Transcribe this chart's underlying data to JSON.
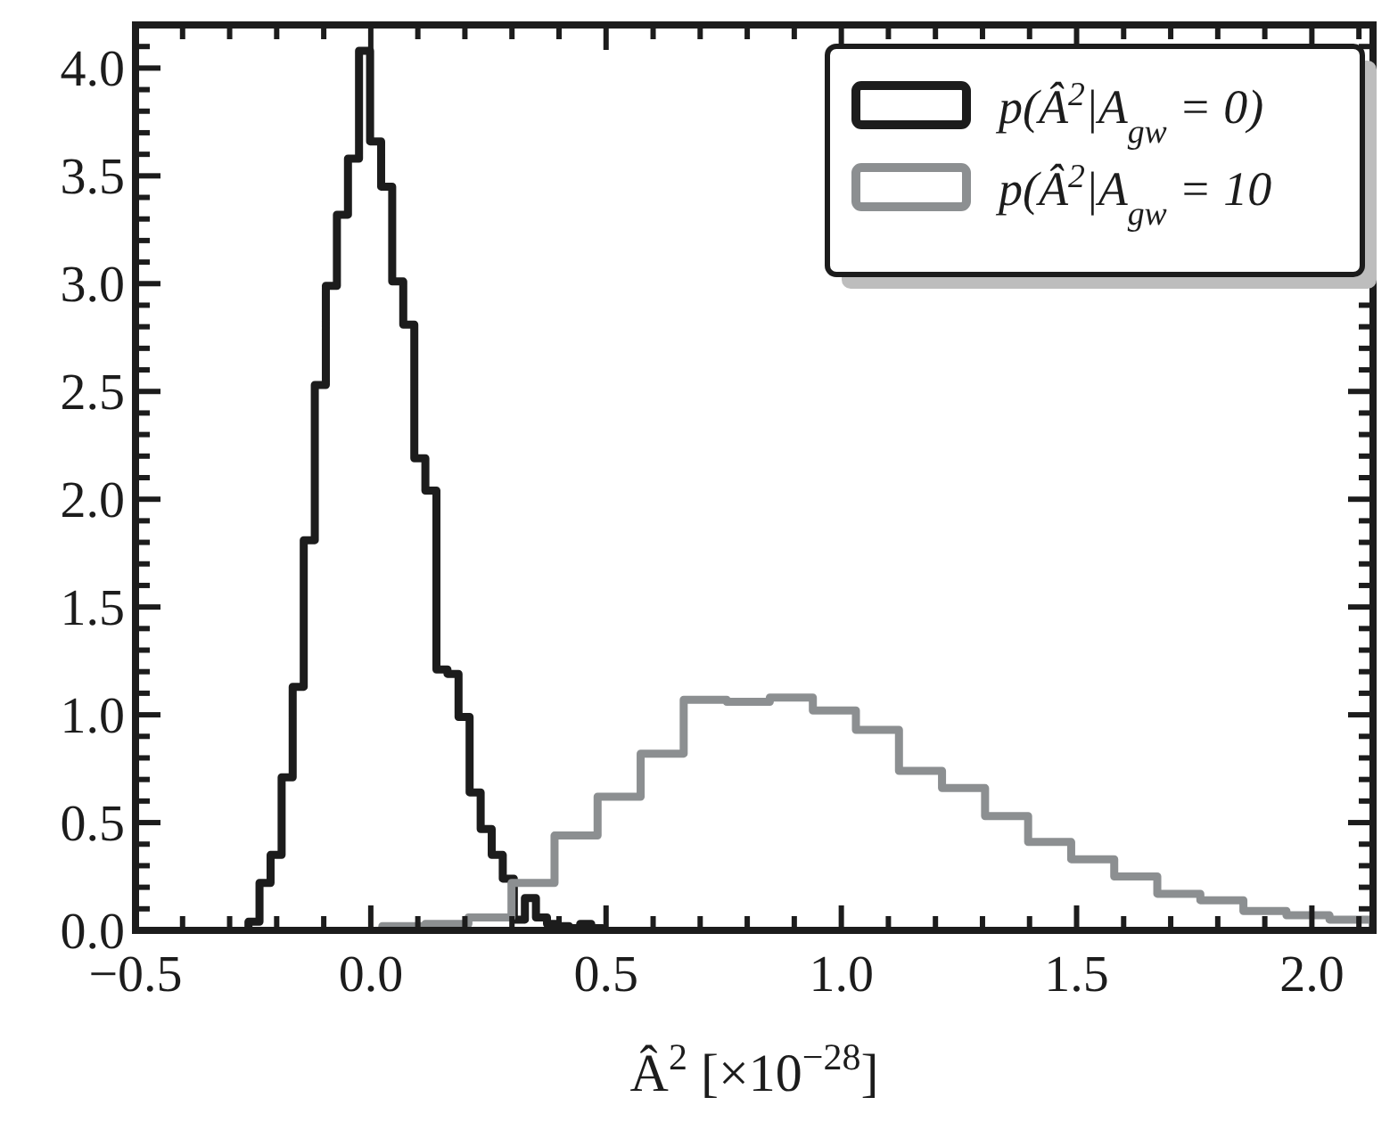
{
  "chart_data": {
    "type": "step",
    "xlabel": "Â$^{2}$ [×10$^{−28}$]",
    "series": [
      {
        "name": "p(Â$^{2}$|A$_{gw}$ = 0)",
        "color": "#1c1c1c",
        "x": [
          -0.26,
          -0.26,
          -0.2365,
          -0.213,
          -0.1895,
          -0.166,
          -0.1425,
          -0.119,
          -0.0955,
          -0.072,
          -0.0485,
          -0.025,
          -0.0015,
          0.022,
          0.0455,
          0.069,
          0.0925,
          0.116,
          0.1395,
          0.163,
          0.1865,
          0.21,
          0.2335,
          0.257,
          0.2805,
          0.304,
          0.3275,
          0.351,
          0.3745,
          0.398,
          0.4215,
          0.445,
          0.4685,
          0.492,
          0.492
        ],
        "values": [
          0,
          0.04,
          0.22,
          0.35,
          0.71,
          1.13,
          1.81,
          2.53,
          2.99,
          3.32,
          3.58,
          4.08,
          3.66,
          3.45,
          3.01,
          2.81,
          2.19,
          2.04,
          1.21,
          1.19,
          0.99,
          0.64,
          0.47,
          0.35,
          0.24,
          0.05,
          0.15,
          0.06,
          0.03,
          0.02,
          0.01,
          0.03,
          0.01,
          0.01,
          0
        ]
      },
      {
        "name": "p(Â$^{2}$|A$_{gw}$ = 10",
        "color": "#8c8f91",
        "x": [
          0.0245,
          0.0245,
          0.116,
          0.2075,
          0.299,
          0.3905,
          0.482,
          0.5735,
          0.665,
          0.7565,
          0.848,
          0.9395,
          1.031,
          1.1225,
          1.214,
          1.3055,
          1.397,
          1.4885,
          1.58,
          1.6715,
          1.763,
          1.8545,
          1.946,
          2.0375,
          2.129,
          2.129
        ],
        "values": [
          0,
          0.02,
          0.03,
          0.06,
          0.22,
          0.44,
          0.62,
          0.82,
          1.07,
          1.06,
          1.08,
          1.02,
          0.93,
          0.74,
          0.66,
          0.53,
          0.41,
          0.33,
          0.25,
          0.17,
          0.14,
          0.09,
          0.07,
          0.05,
          0.05,
          0
        ]
      }
    ],
    "xlim": [
      -0.5,
      2.13
    ],
    "xticks": [
      {
        "value": -0.5,
        "label": "−0.5"
      },
      {
        "value": -0.4,
        "label": null
      },
      {
        "value": -0.3,
        "label": null
      },
      {
        "value": -0.2,
        "label": null
      },
      {
        "value": -0.1,
        "label": null
      },
      {
        "value": 0,
        "label": "0.0"
      },
      {
        "value": 0.1,
        "label": null
      },
      {
        "value": 0.2,
        "label": null
      },
      {
        "value": 0.3,
        "label": null
      },
      {
        "value": 0.4,
        "label": null
      },
      0.5,
      {
        "value": 0.6,
        "label": null
      },
      {
        "value": 0.7,
        "label": null
      },
      {
        "value": 0.8,
        "label": null
      },
      {
        "value": 0.9,
        "label": null
      },
      {
        "value": 1,
        "label": "1.0"
      },
      {
        "value": 1.1,
        "label": null
      },
      {
        "value": 1.2,
        "label": null
      },
      {
        "value": 1.3,
        "label": null
      },
      {
        "value": 1.4,
        "label": null
      },
      1.5,
      {
        "value": 1.6,
        "label": null
      },
      {
        "value": 1.7,
        "label": null
      },
      {
        "value": 1.8,
        "label": null
      },
      {
        "value": 1.9,
        "label": null
      },
      {
        "value": 2,
        "label": "2.0"
      },
      {
        "value": 2.1,
        "label": null
      }
    ],
    "ylim": [
      0,
      4.2
    ],
    "yticks": [
      {
        "value": 0,
        "label": "0.0"
      },
      {
        "value": 0.1,
        "label": null
      },
      {
        "value": 0.2,
        "label": null
      },
      {
        "value": 0.3,
        "label": null
      },
      {
        "value": 0.4,
        "label": null
      },
      0.5,
      {
        "value": 0.6,
        "label": null
      },
      {
        "value": 0.7,
        "label": null
      },
      {
        "value": 0.8,
        "label": null
      },
      {
        "value": 0.9,
        "label": null
      },
      {
        "value": 1,
        "label": "1.0"
      },
      {
        "value": 1.1,
        "label": null
      },
      {
        "value": 1.2,
        "label": null
      },
      {
        "value": 1.3,
        "label": null
      },
      {
        "value": 1.4,
        "label": null
      },
      1.5,
      {
        "value": 1.6,
        "label": null
      },
      {
        "value": 1.7,
        "label": null
      },
      {
        "value": 1.8,
        "label": null
      },
      {
        "value": 1.9,
        "label": null
      },
      {
        "value": 2,
        "label": "2.0"
      },
      {
        "value": 2.1,
        "label": null
      },
      {
        "value": 2.2,
        "label": null
      },
      {
        "value": 2.3,
        "label": null
      },
      {
        "value": 2.4,
        "label": null
      },
      2.5,
      {
        "value": 2.6,
        "label": null
      },
      {
        "value": 2.7,
        "label": null
      },
      {
        "value": 2.8,
        "label": null
      },
      {
        "value": 2.9,
        "label": null
      },
      {
        "value": 3,
        "label": "3.0"
      },
      {
        "value": 3.1,
        "label": null
      },
      {
        "value": 3.2,
        "label": null
      },
      {
        "value": 3.3,
        "label": null
      },
      {
        "value": 3.4,
        "label": null
      },
      3.5,
      {
        "value": 3.6,
        "label": null
      },
      {
        "value": 3.7,
        "label": null
      },
      {
        "value": 3.8,
        "label": null
      },
      {
        "value": 3.9,
        "label": null
      },
      {
        "value": 4,
        "label": "4.0"
      },
      {
        "value": 4.1,
        "label": null
      }
    ],
    "legend": "top right"
  }
}
